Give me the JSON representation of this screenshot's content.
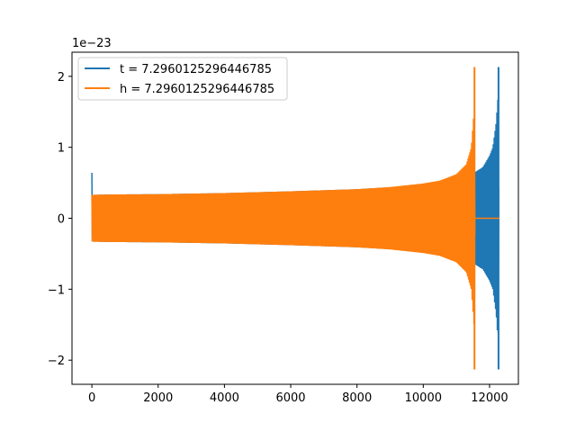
{
  "chart_data": {
    "type": "line",
    "title": "",
    "xlabel": "",
    "ylabel": "",
    "xlim": [
      -600,
      12870
    ],
    "ylim": [
      -2.34,
      2.34
    ],
    "y_offset_text": "1e−23",
    "x_ticks": [
      0,
      2000,
      4000,
      6000,
      8000,
      10000,
      12000
    ],
    "y_ticks": [
      -2,
      -1,
      0,
      1,
      2
    ],
    "x_tick_labels": [
      "0",
      "2000",
      "4000",
      "6000",
      "8000",
      "10000",
      "12000"
    ],
    "y_tick_labels": [
      "−2",
      "−1",
      "0",
      "1",
      "2"
    ],
    "legend_position": "upper-left",
    "grid": false,
    "series": [
      {
        "name": "t = 7.2960125296446785",
        "color": "#1f77b4",
        "envelope": {
          "x": [
            0,
            10,
            500,
            2000,
            4000,
            6000,
            8000,
            9500,
            10500,
            11000,
            11400,
            11600,
            11800,
            12000,
            12100,
            12200,
            12260,
            12280
          ],
          "upper": [
            0.64,
            0.33,
            0.335,
            0.34,
            0.355,
            0.38,
            0.41,
            0.45,
            0.52,
            0.57,
            0.62,
            0.66,
            0.72,
            0.88,
            1.0,
            1.35,
            1.75,
            0.0
          ],
          "lower": [
            -0.57,
            -0.33,
            -0.335,
            -0.34,
            -0.355,
            -0.38,
            -0.41,
            -0.45,
            -0.52,
            -0.57,
            -0.62,
            -0.66,
            -0.72,
            -0.88,
            -1.0,
            -1.35,
            -1.75,
            0.0
          ]
        },
        "spike": {
          "x": 12270,
          "top": 2.13,
          "bottom": -2.13
        },
        "tail": {
          "x_start": 12280,
          "x_end": 12300,
          "value": 0.0
        }
      },
      {
        "name": "h = 7.2960125296446785",
        "color": "#ff7f0e",
        "envelope": {
          "x": [
            0,
            10,
            500,
            2000,
            4000,
            6000,
            8000,
            9000,
            10000,
            10500,
            11000,
            11300,
            11450,
            11530,
            11560
          ],
          "upper": [
            0.33,
            0.33,
            0.335,
            0.34,
            0.355,
            0.38,
            0.41,
            0.44,
            0.49,
            0.53,
            0.62,
            0.76,
            1.0,
            1.5,
            0.0
          ],
          "lower": [
            -0.33,
            -0.33,
            -0.335,
            -0.34,
            -0.355,
            -0.38,
            -0.41,
            -0.44,
            -0.49,
            -0.53,
            -0.62,
            -0.76,
            -1.0,
            -1.5,
            0.0
          ]
        },
        "spike": {
          "x": 11545,
          "top": 2.13,
          "bottom": -2.13
        },
        "tail": {
          "x_start": 11560,
          "x_end": 12300,
          "value": 0.0
        }
      }
    ]
  }
}
